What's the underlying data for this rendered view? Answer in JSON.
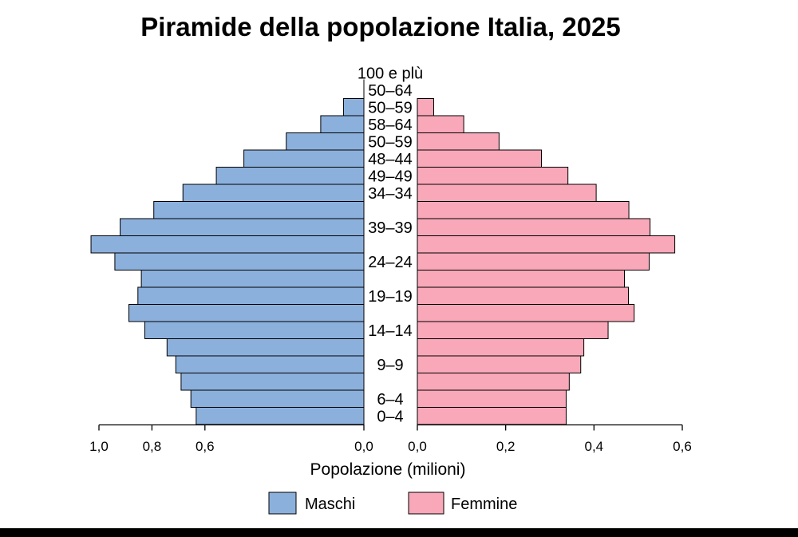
{
  "chart_data": {
    "type": "bar",
    "orientation": "horizontal",
    "title": "Piramide della popolazione Italia, 2025",
    "xlabel": "Popolazione (milioni)",
    "categories": [
      "100 e plù",
      "50–64",
      "50–59",
      "58–64",
      "50–59",
      "48–44",
      "49–49",
      "34–34",
      "",
      "39–39",
      "",
      "24–24",
      "",
      "19–19",
      "",
      "14–14",
      "",
      "9–9",
      "",
      "6–4",
      "0–4"
    ],
    "left_ticks": [
      "1,0",
      "0,8",
      "0,6",
      "0,0"
    ],
    "left_tick_values": [
      1.0,
      0.8,
      0.6,
      0.0
    ],
    "right_ticks": [
      "0,0",
      "0,2",
      "0,4",
      "0,6"
    ],
    "right_tick_values": [
      0.0,
      0.2,
      0.4,
      0.6
    ],
    "left_max": 1.0,
    "right_max": 0.6,
    "series": [
      {
        "name": "Maschi",
        "color": "#8cb0dc",
        "side": "left",
        "values": [
          0,
          0,
          0.077,
          0.163,
          0.293,
          0.453,
          0.557,
          0.683,
          0.793,
          0.92,
          1.03,
          0.94,
          0.84,
          0.853,
          0.887,
          0.827,
          0.743,
          0.71,
          0.69,
          0.653,
          0.633
        ]
      },
      {
        "name": "Femmine",
        "color": "#f8a8b8",
        "side": "right",
        "values": [
          0,
          0,
          0.037,
          0.105,
          0.185,
          0.281,
          0.341,
          0.405,
          0.479,
          0.527,
          0.583,
          0.525,
          0.469,
          0.478,
          0.491,
          0.432,
          0.377,
          0.37,
          0.344,
          0.337,
          0.337
        ]
      }
    ],
    "legend_position": "bottom",
    "grid": false
  }
}
